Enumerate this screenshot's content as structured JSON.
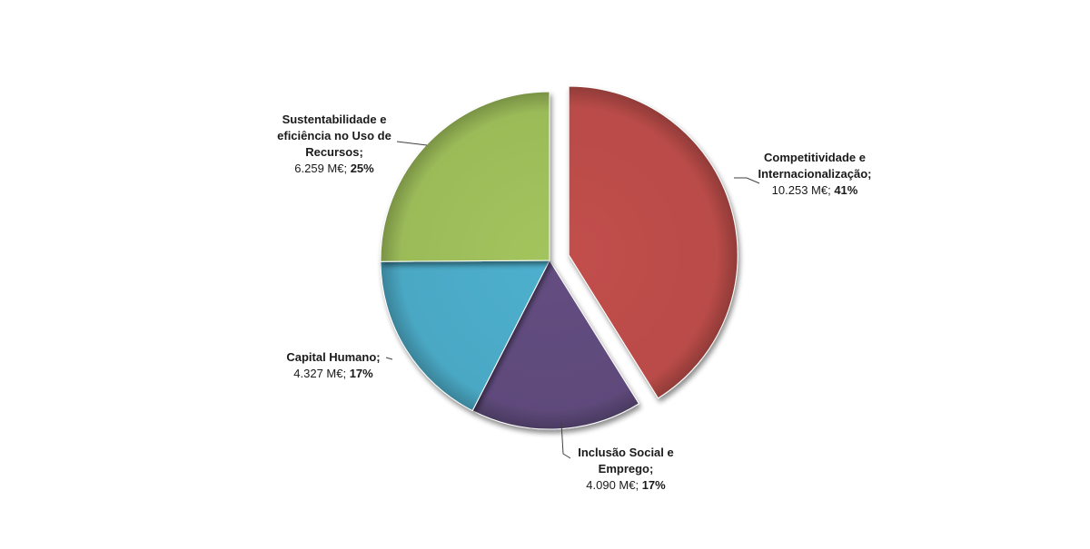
{
  "chart_data": {
    "type": "pie",
    "unit": "M€",
    "exploded_slice": "Competitividade e Internacionalização",
    "slices": [
      {
        "name": "Competitividade e Internacionalização",
        "value": 10253,
        "percent": 41,
        "color": "#b94b48",
        "label_lines": [
          "Competitividade e",
          "Internacionalização;"
        ],
        "value_text": "10.253 M€; ",
        "percent_text": "41%"
      },
      {
        "name": "Inclusão Social e Emprego",
        "value": 4090,
        "percent": 17,
        "color": "#5f4a7b",
        "label_lines": [
          "Inclusão Social e",
          "Emprego;"
        ],
        "value_text": "4.090 M€; ",
        "percent_text": "17%"
      },
      {
        "name": "Capital Humano",
        "value": 4327,
        "percent": 17,
        "color": "#4aa8c4",
        "label_lines": [
          "Capital Humano;"
        ],
        "value_text": "4.327 M€; ",
        "percent_text": "17%"
      },
      {
        "name": "Sustentabilidade e eficiência no Uso de Recursos",
        "value": 6259,
        "percent": 25,
        "color": "#9bbb59",
        "label_lines": [
          "Sustentabilidade e",
          "eficiência no Uso de",
          "Recursos;"
        ],
        "value_text": "6.259 M€; ",
        "percent_text": "25%"
      }
    ]
  }
}
